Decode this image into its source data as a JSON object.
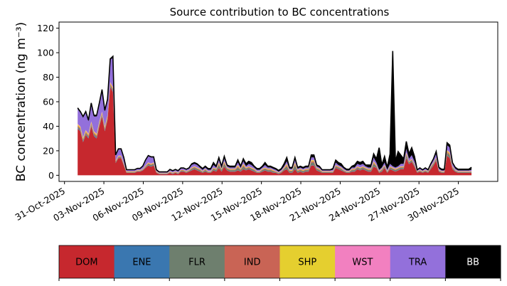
{
  "chart_data": {
    "type": "area",
    "stacked": true,
    "title": "Source contribution to BC concentrations",
    "ylabel": "BC concentration (ng m⁻³)",
    "xlabel": "",
    "ylim": [
      -5,
      125
    ],
    "yticks": [
      0,
      20,
      40,
      60,
      80,
      100,
      120
    ],
    "x_start": "2025-11-01",
    "x_end": "2025-12-01",
    "xlim": [
      "2025-10-30T14:00",
      "2025-12-03"
    ],
    "xticks": [
      "31-Oct-2025",
      "03-Nov-2025",
      "06-Nov-2025",
      "09-Nov-2025",
      "12-Nov-2025",
      "15-Nov-2025",
      "18-Nov-2025",
      "21-Nov-2025",
      "24-Nov-2025",
      "27-Nov-2025",
      "30-Nov-2025"
    ],
    "grid": false,
    "legend_position": "bottom, horizontal colour bar",
    "series": [
      {
        "name": "DOM",
        "color": "#c6282e",
        "label_color": "#000000",
        "values": [
          38,
          36,
          27,
          33,
          30,
          40,
          32,
          30,
          40,
          48,
          36,
          45,
          72,
          68,
          10,
          14,
          14,
          8,
          2,
          2,
          2,
          2,
          3,
          3,
          4,
          6,
          8,
          7,
          8,
          2,
          1,
          1,
          1,
          1,
          2,
          1,
          2,
          1,
          3,
          3,
          2,
          3,
          4,
          5,
          4,
          3,
          2,
          3,
          2,
          2,
          4,
          3,
          6,
          3,
          7,
          4,
          3,
          3,
          3,
          4,
          3,
          5,
          4,
          5,
          4,
          3,
          2,
          2,
          3,
          4,
          3,
          3,
          2,
          2,
          1,
          2,
          4,
          5,
          2,
          2,
          5,
          2,
          3,
          2,
          3,
          3,
          8,
          8,
          4,
          3,
          2,
          2,
          2,
          2,
          2,
          6,
          5,
          4,
          3,
          2,
          2,
          3,
          3,
          5,
          4,
          5,
          4,
          3,
          3,
          7,
          6,
          2,
          3,
          6,
          2,
          5,
          4,
          3,
          4,
          5,
          5,
          14,
          9,
          11,
          7,
          2,
          3,
          2,
          3,
          2,
          5,
          8,
          12,
          3,
          2,
          2,
          16,
          14,
          5,
          3,
          2,
          2,
          2,
          2,
          2,
          2
        ]
      },
      {
        "name": "ENE",
        "color": "#3a77b0",
        "label_color": "#000000",
        "values": [
          0.5,
          0.5,
          0.5,
          0.5,
          0.5,
          0.5,
          0.5,
          0.5,
          0.5,
          0.5,
          0.5,
          0.5,
          0.5,
          0.5,
          0.3,
          0.3,
          0.3,
          0.3,
          0.2,
          0.2,
          0.2,
          0.2,
          0.2,
          0.2,
          0.2,
          0.3,
          0.3,
          0.3,
          0.3,
          0.2,
          0.2,
          0.2,
          0.2,
          0.2,
          0.2,
          0.2,
          0.2,
          0.2,
          0.2,
          0.2,
          0.2,
          0.2,
          0.2,
          0.2,
          0.2,
          0.2,
          0.2,
          0.2,
          0.2,
          0.2,
          0.2,
          0.2,
          0.2,
          0.2,
          0.2,
          0.2,
          0.2,
          0.2,
          0.2,
          0.2,
          0.2,
          0.2,
          0.2,
          0.2,
          0.2,
          0.2,
          0.2,
          0.2,
          0.2,
          0.2,
          0.2,
          0.2,
          0.2,
          0.2,
          0.2,
          0.2,
          0.2,
          0.2,
          0.2,
          0.2,
          0.2,
          0.2,
          0.2,
          0.2,
          0.2,
          0.2,
          0.3,
          0.3,
          0.2,
          0.2,
          0.2,
          0.2,
          0.2,
          0.2,
          0.2,
          0.2,
          0.2,
          0.2,
          0.2,
          0.2,
          0.2,
          0.2,
          0.2,
          0.2,
          0.2,
          0.2,
          0.2,
          0.2,
          0.2,
          0.2,
          0.2,
          0.2,
          0.2,
          0.2,
          0.2,
          0.2,
          0.2,
          0.2,
          0.2,
          0.2,
          0.2,
          0.3,
          0.3,
          0.3,
          0.3,
          0.2,
          0.2,
          0.2,
          0.2,
          0.2,
          0.2,
          0.3,
          0.3,
          0.2,
          0.2,
          0.2,
          0.3,
          0.3,
          0.2,
          0.2,
          0.2,
          0.2,
          0.2,
          0.2,
          0.2,
          0.2
        ]
      },
      {
        "name": "FLR",
        "color": "#6e7f6e",
        "label_color": "#000000",
        "values": [
          1,
          1,
          1,
          1,
          1,
          1,
          1,
          1,
          1,
          1,
          1,
          1,
          1,
          1,
          0.5,
          0.5,
          0.5,
          0.5,
          0.3,
          0.3,
          0.3,
          0.3,
          0.3,
          0.3,
          0.3,
          0.5,
          1,
          1,
          1,
          0.3,
          0.2,
          0.2,
          0.2,
          0.2,
          0.3,
          0.3,
          0.3,
          0.3,
          0.5,
          0.5,
          0.5,
          0.5,
          1,
          1,
          1,
          1,
          0.5,
          1,
          0.5,
          0.5,
          1,
          1,
          2,
          1,
          2,
          1,
          1,
          1,
          1,
          2,
          1,
          2,
          1,
          1,
          1,
          1,
          0.5,
          0.5,
          1,
          1,
          1,
          1,
          1,
          0.5,
          0.5,
          0.5,
          1,
          2,
          1,
          1,
          3,
          1,
          1,
          1,
          1,
          1,
          2,
          2,
          1,
          1,
          0.5,
          0.5,
          0.5,
          0.5,
          0.5,
          1,
          1,
          1,
          0.5,
          0.5,
          0.5,
          1,
          1,
          1,
          1,
          1,
          1,
          1,
          1,
          2,
          1,
          0.5,
          1,
          1,
          0.5,
          1,
          1,
          1,
          1,
          1,
          1,
          2,
          1,
          1,
          1,
          0.5,
          0.5,
          0.5,
          0.5,
          0.5,
          1,
          1,
          1,
          0.5,
          0.5,
          0.5,
          2,
          2,
          1,
          0.5,
          0.5,
          0.5,
          0.5,
          0.5,
          0.5,
          0.5
        ]
      },
      {
        "name": "IND",
        "color": "#c96455",
        "label_color": "#000000",
        "values": [
          1,
          1,
          1,
          1,
          1,
          1,
          1,
          1,
          1,
          1,
          1,
          1,
          1,
          1,
          0.5,
          0.5,
          0.5,
          0.5,
          0.3,
          0.3,
          0.3,
          0.3,
          0.3,
          0.3,
          0.3,
          0.5,
          0.5,
          0.5,
          0.5,
          0.3,
          0.2,
          0.2,
          0.2,
          0.2,
          0.3,
          0.3,
          0.3,
          0.3,
          0.3,
          0.3,
          0.3,
          0.3,
          0.5,
          0.5,
          0.5,
          0.5,
          0.3,
          0.5,
          0.3,
          0.3,
          0.5,
          0.5,
          1,
          0.5,
          1,
          0.5,
          0.5,
          0.5,
          0.5,
          1,
          0.5,
          1,
          0.5,
          0.5,
          0.5,
          0.5,
          0.3,
          0.3,
          0.5,
          0.5,
          0.5,
          0.5,
          0.5,
          0.3,
          0.3,
          0.3,
          0.5,
          1,
          0.5,
          0.5,
          1,
          0.5,
          0.5,
          0.5,
          0.5,
          0.5,
          1,
          1,
          0.5,
          0.5,
          0.3,
          0.3,
          0.3,
          0.3,
          0.3,
          0.5,
          0.5,
          0.5,
          0.3,
          0.3,
          0.3,
          0.5,
          0.5,
          0.5,
          0.5,
          0.5,
          0.5,
          0.5,
          0.5,
          1,
          0.5,
          0.3,
          0.5,
          0.5,
          0.3,
          0.5,
          0.5,
          0.5,
          0.5,
          0.5,
          0.5,
          1,
          0.5,
          0.5,
          0.5,
          0.3,
          0.3,
          0.3,
          0.3,
          0.3,
          0.5,
          0.5,
          0.5,
          0.3,
          0.3,
          0.3,
          1,
          1,
          0.5,
          0.3,
          0.3,
          0.3,
          0.3,
          0.3,
          0.3,
          0.3
        ]
      },
      {
        "name": "SHP",
        "color": "#e5cf2f",
        "label_color": "#000000",
        "values": [
          1,
          1,
          1,
          1,
          1,
          1,
          1,
          1,
          1,
          1,
          1,
          1,
          1,
          1,
          0.5,
          0.5,
          0.5,
          0.5,
          0.3,
          0.3,
          0.3,
          0.3,
          0.3,
          0.3,
          0.3,
          0.5,
          0.5,
          0.5,
          0.5,
          0.3,
          0.2,
          0.2,
          0.2,
          0.2,
          0.3,
          0.3,
          0.3,
          0.3,
          0.3,
          0.3,
          0.3,
          0.3,
          0.5,
          0.5,
          0.5,
          0.5,
          0.3,
          0.5,
          0.3,
          0.3,
          0.5,
          0.5,
          1,
          0.5,
          1,
          0.5,
          0.5,
          0.5,
          0.5,
          1,
          0.5,
          1,
          0.5,
          0.5,
          0.5,
          0.5,
          0.3,
          0.3,
          0.5,
          0.5,
          0.5,
          0.5,
          0.5,
          0.3,
          0.3,
          0.3,
          0.5,
          1,
          0.5,
          0.5,
          1,
          0.5,
          0.5,
          0.5,
          0.5,
          0.5,
          1,
          1,
          0.5,
          0.5,
          0.3,
          0.3,
          0.3,
          0.3,
          0.3,
          0.5,
          0.5,
          0.5,
          0.3,
          0.3,
          0.3,
          0.5,
          0.5,
          0.5,
          0.5,
          0.5,
          0.5,
          0.5,
          0.5,
          1,
          0.5,
          0.3,
          0.5,
          0.5,
          0.3,
          0.5,
          0.5,
          0.5,
          0.5,
          0.5,
          0.5,
          1,
          0.5,
          0.5,
          0.5,
          0.3,
          0.3,
          0.3,
          0.3,
          0.3,
          0.5,
          0.5,
          0.5,
          0.3,
          0.3,
          0.3,
          1,
          1,
          0.5,
          0.3,
          0.3,
          0.3,
          0.3,
          0.3,
          0.3,
          0.3
        ]
      },
      {
        "name": "WST",
        "color": "#f280c0",
        "label_color": "#000000",
        "values": [
          0.5,
          0.5,
          0.5,
          0.5,
          0.5,
          0.5,
          0.5,
          0.5,
          0.5,
          0.5,
          0.5,
          0.5,
          0.5,
          0.5,
          0.3,
          0.3,
          0.3,
          0.3,
          0.2,
          0.2,
          0.2,
          0.2,
          0.2,
          0.2,
          0.2,
          0.3,
          0.3,
          0.3,
          0.3,
          0.2,
          0.2,
          0.2,
          0.2,
          0.2,
          0.2,
          0.2,
          0.2,
          0.2,
          0.2,
          0.2,
          0.2,
          0.2,
          0.2,
          0.2,
          0.2,
          0.2,
          0.2,
          0.2,
          0.2,
          0.2,
          0.2,
          0.2,
          0.3,
          0.2,
          0.3,
          0.2,
          0.2,
          0.2,
          0.2,
          0.3,
          0.2,
          0.3,
          0.2,
          0.2,
          0.2,
          0.2,
          0.2,
          0.2,
          0.2,
          0.2,
          0.2,
          0.2,
          0.2,
          0.2,
          0.2,
          0.2,
          0.2,
          0.3,
          0.2,
          0.2,
          0.3,
          0.2,
          0.2,
          0.2,
          0.2,
          0.2,
          0.3,
          0.3,
          0.2,
          0.2,
          0.2,
          0.2,
          0.2,
          0.2,
          0.2,
          0.2,
          0.2,
          0.2,
          0.2,
          0.2,
          0.2,
          0.2,
          0.2,
          0.2,
          0.2,
          0.2,
          0.2,
          0.2,
          0.2,
          0.3,
          0.2,
          0.2,
          0.2,
          0.2,
          0.2,
          0.2,
          0.2,
          0.2,
          0.2,
          0.2,
          0.2,
          0.3,
          0.2,
          0.2,
          0.2,
          0.2,
          0.2,
          0.2,
          0.2,
          0.2,
          0.2,
          0.2,
          0.2,
          0.2,
          0.2,
          0.2,
          0.3,
          0.3,
          0.2,
          0.2,
          0.2,
          0.2,
          0.2,
          0.2,
          0.2,
          0.2
        ]
      },
      {
        "name": "TRA",
        "color": "#9370db",
        "label_color": "#000000",
        "values": [
          12,
          11,
          16,
          14,
          10,
          14,
          12,
          14,
          14,
          17,
          12,
          12,
          18,
          24,
          4,
          5,
          5,
          4,
          1,
          1,
          1,
          1,
          1,
          1,
          2,
          4,
          5,
          5,
          4,
          1,
          0.5,
          0.5,
          0.5,
          0.5,
          1,
          1,
          1,
          1,
          1,
          1,
          1,
          1,
          2,
          2,
          2,
          1,
          1,
          1,
          1,
          1,
          2,
          1,
          2,
          1,
          2,
          1,
          1,
          1,
          1,
          2,
          1,
          2,
          1,
          2,
          2,
          1,
          1,
          1,
          1,
          2,
          1,
          1,
          1,
          1,
          0.5,
          1,
          1,
          2,
          1,
          1,
          2,
          1,
          1,
          1,
          1,
          1,
          2,
          2,
          1,
          1,
          0.5,
          0.5,
          0.5,
          0.5,
          1,
          2,
          1,
          1,
          1,
          0.5,
          0.5,
          1,
          1,
          2,
          2,
          2,
          1,
          1,
          1,
          3,
          2,
          1,
          1,
          2,
          1,
          2,
          1,
          1,
          1,
          2,
          2,
          3,
          2,
          3,
          2,
          0.5,
          1,
          0.5,
          1,
          0.5,
          1,
          2,
          3,
          1,
          0.5,
          0.5,
          4,
          4,
          2,
          1,
          0.5,
          0.5,
          0.5,
          0.5,
          0.5,
          1
        ]
      },
      {
        "name": "BB",
        "color": "#000000",
        "label_color": "#ffffff",
        "values": [
          1,
          1,
          1,
          1,
          1,
          1,
          1,
          1,
          1,
          1,
          1,
          1,
          1,
          1,
          0.5,
          0.5,
          0.5,
          0.5,
          0.3,
          0.3,
          0.3,
          0.3,
          0.3,
          0.3,
          0.3,
          0.5,
          0.5,
          0.5,
          0.5,
          0.3,
          0.3,
          0.3,
          0.3,
          0.3,
          0.5,
          0.5,
          0.5,
          0.5,
          0.5,
          0.5,
          0.5,
          0.5,
          1,
          1,
          1,
          1,
          1,
          1,
          1,
          1,
          2,
          1,
          2,
          1,
          2,
          1,
          1,
          1,
          1,
          2,
          1,
          2,
          2,
          2,
          2,
          1,
          1,
          1,
          1,
          2,
          1,
          1,
          1,
          1,
          1,
          1,
          2,
          3,
          1,
          1,
          2,
          1,
          1,
          1,
          1,
          1,
          2,
          2,
          1,
          1,
          0.5,
          0.5,
          0.5,
          0.5,
          1,
          2,
          2,
          2,
          1,
          1,
          1,
          1,
          2,
          2,
          2,
          2,
          1,
          2,
          2,
          3,
          3,
          18,
          2,
          5,
          2,
          8,
          94,
          5,
          12,
          7,
          4,
          6,
          4,
          6,
          4,
          0.5,
          0.5,
          0.5,
          0.5,
          0.5,
          1,
          1,
          2,
          1,
          1,
          1,
          2,
          2,
          1,
          1,
          1,
          1,
          1,
          1,
          1,
          2
        ]
      }
    ]
  }
}
